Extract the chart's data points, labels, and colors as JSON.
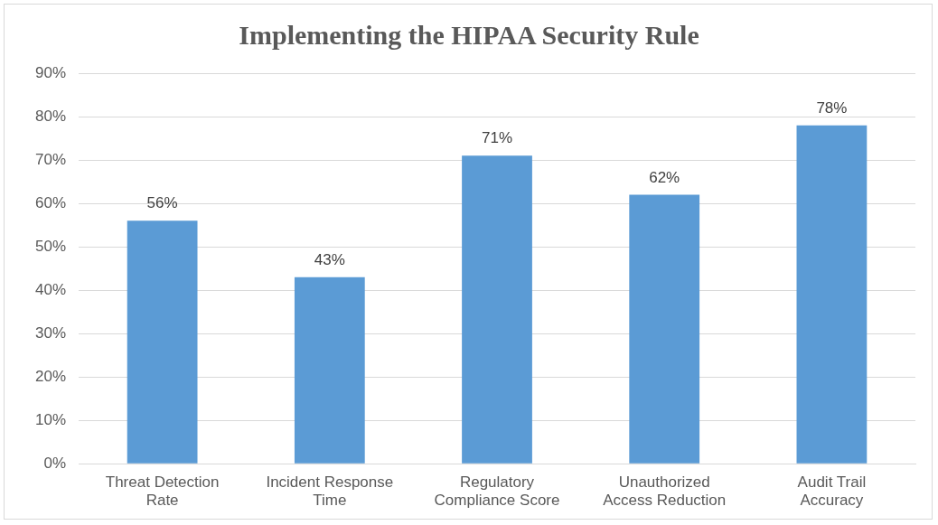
{
  "chart_data": {
    "type": "bar",
    "title": "Implementing the HIPAA Security Rule",
    "categories": [
      "Threat Detection Rate",
      "Incident Response Time",
      "Regulatory Compliance Score",
      "Unauthorized Access Reduction",
      "Audit Trail Accuracy"
    ],
    "values": [
      56,
      43,
      71,
      62,
      78
    ],
    "value_labels": [
      "56%",
      "43%",
      "71%",
      "62%",
      "78%"
    ],
    "color": "#5b9bd5",
    "ylim": [
      0,
      90
    ],
    "yticks": [
      {
        "value": 0,
        "label": "0%"
      },
      {
        "value": 10,
        "label": "10%"
      },
      {
        "value": 20,
        "label": "20%"
      },
      {
        "value": 30,
        "label": "30%"
      },
      {
        "value": 40,
        "label": "40%"
      },
      {
        "value": 50,
        "label": "50%"
      },
      {
        "value": 60,
        "label": "60%"
      },
      {
        "value": 70,
        "label": "70%"
      },
      {
        "value": 80,
        "label": "80%"
      },
      {
        "value": 90,
        "label": "90%"
      }
    ],
    "grid": "y",
    "legend": false
  }
}
